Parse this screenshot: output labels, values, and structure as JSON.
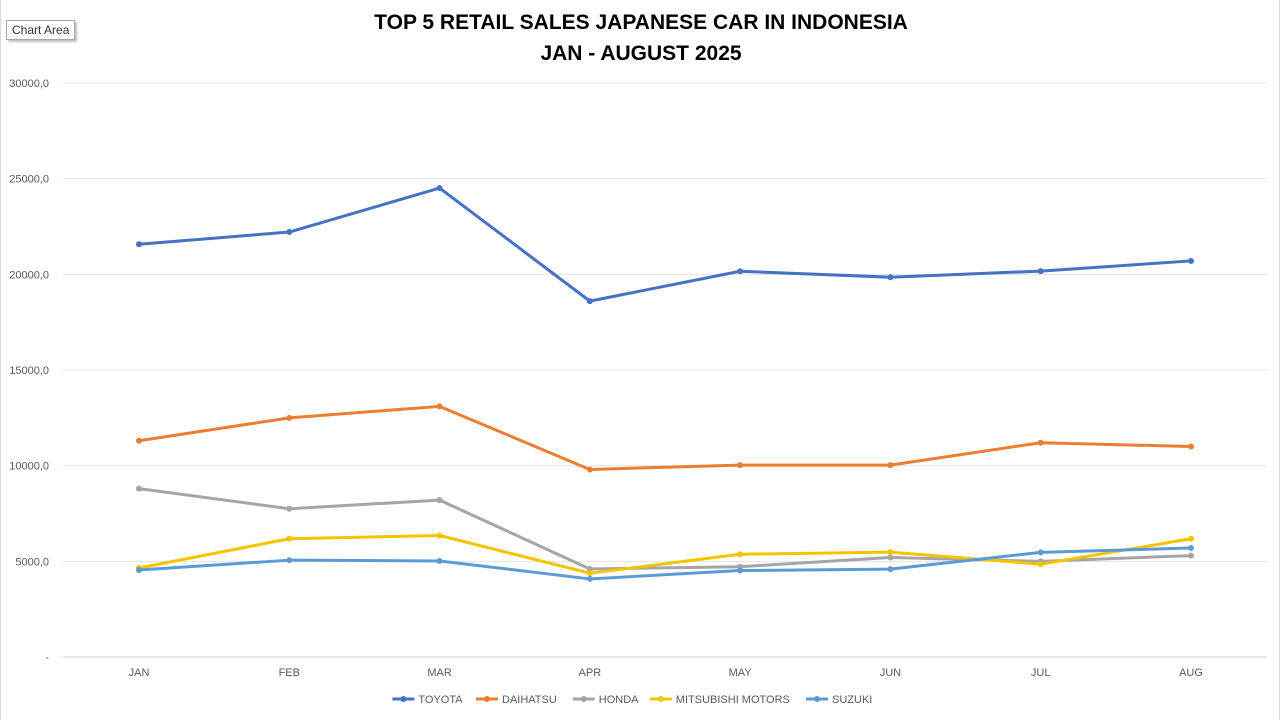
{
  "window": {
    "tooltip": "Chart Area"
  },
  "chart_data": {
    "type": "line",
    "title_lines": [
      "TOP 5 RETAIL SALES JAPANESE CAR IN INDONESIA",
      "JAN - AUGUST 2025"
    ],
    "xlabel": "",
    "ylabel": "",
    "categories": [
      "JAN",
      "FEB",
      "MAR",
      "APR",
      "MAY",
      "JUN",
      "JUL",
      "AUG"
    ],
    "ylim": [
      0,
      30000
    ],
    "yticks": [
      {
        "value": 0,
        "label": "-"
      },
      {
        "value": 5000,
        "label": "5000,0"
      },
      {
        "value": 10000,
        "label": "10000,0"
      },
      {
        "value": 15000,
        "label": "15000,0"
      },
      {
        "value": 20000,
        "label": "20000,0"
      },
      {
        "value": 25000,
        "label": "25000,0"
      },
      {
        "value": 30000,
        "label": "30000,0"
      }
    ],
    "grid": true,
    "legend_position": "bottom",
    "series": [
      {
        "name": "TOYOTA",
        "color": "#4472C4",
        "values": [
          21570,
          22210,
          24510,
          18600,
          20160,
          19850,
          20170,
          20700
        ]
      },
      {
        "name": "DAIHATSU",
        "color": "#ED7D31",
        "values": [
          11300,
          12500,
          13100,
          9800,
          10030,
          10030,
          11200,
          11000
        ]
      },
      {
        "name": "HONDA",
        "color": "#A5A5A5",
        "values": [
          8800,
          7750,
          8200,
          4600,
          4720,
          5200,
          5000,
          5300
        ]
      },
      {
        "name": "MITSUBISHI MOTORS",
        "color": "#F5C400",
        "values": [
          4650,
          6180,
          6350,
          4380,
          5370,
          5480,
          4850,
          6180
        ]
      },
      {
        "name": "SUZUKI",
        "color": "#5B9BD5",
        "values": [
          4550,
          5060,
          5020,
          4080,
          4520,
          4590,
          5470,
          5700
        ]
      }
    ]
  }
}
